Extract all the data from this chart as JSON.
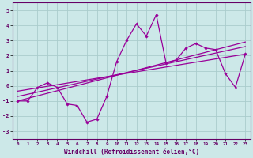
{
  "background_color": "#cce8e8",
  "grid_color": "#aacccc",
  "line_color": "#990099",
  "xlim": [
    -0.5,
    23.5
  ],
  "ylim": [
    -3.5,
    5.5
  ],
  "yticks": [
    -3,
    -2,
    -1,
    0,
    1,
    2,
    3,
    4,
    5
  ],
  "xticks": [
    0,
    1,
    2,
    3,
    4,
    5,
    6,
    7,
    8,
    9,
    10,
    11,
    12,
    13,
    14,
    15,
    16,
    17,
    18,
    19,
    20,
    21,
    22,
    23
  ],
  "xlabel": "Windchill (Refroidissement éolien,°C)",
  "series1_x": [
    0,
    1,
    2,
    3,
    4,
    5,
    6,
    7,
    8,
    9,
    10,
    11,
    12,
    13,
    14,
    15,
    16,
    17,
    18,
    19,
    20,
    21,
    22,
    23
  ],
  "series1_y": [
    -1.0,
    -1.0,
    -0.1,
    0.2,
    -0.1,
    -1.2,
    -1.3,
    -2.4,
    -2.2,
    -0.7,
    1.6,
    3.0,
    4.1,
    3.3,
    4.7,
    1.5,
    1.7,
    2.5,
    2.8,
    2.5,
    2.4,
    0.8,
    -0.1,
    2.1
  ],
  "line1_x": [
    0,
    23
  ],
  "line1_y": [
    -1.0,
    2.9
  ],
  "line2_x": [
    0,
    23
  ],
  "line2_y": [
    -0.7,
    2.6
  ],
  "line3_x": [
    0,
    23
  ],
  "line3_y": [
    -0.35,
    2.1
  ]
}
